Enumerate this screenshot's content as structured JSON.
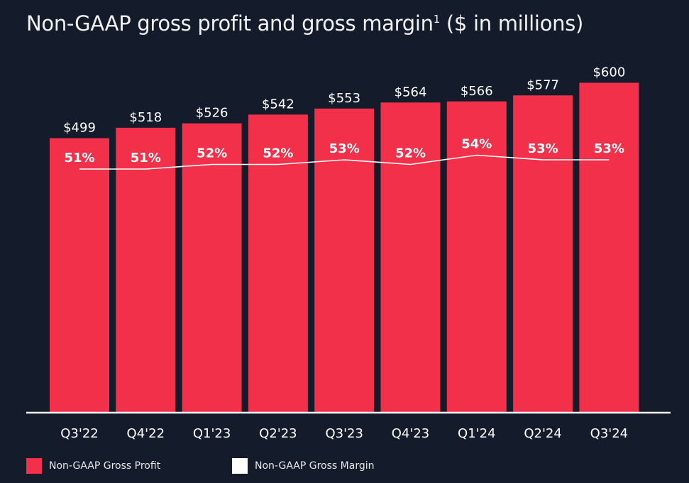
{
  "title": "Non-GAAP gross profit and gross margin",
  "title_superscript": "1",
  "title_units": "($ in millions)",
  "colors": {
    "background": "#141b2b",
    "bar": "#f2304a",
    "line": "#ffffff",
    "text": "#ffffff"
  },
  "chart_data": {
    "type": "bar",
    "title": "Non-GAAP gross profit and gross margin¹ ($ in millions)",
    "categories": [
      "Q3'22",
      "Q4'22",
      "Q1'23",
      "Q2'23",
      "Q3'23",
      "Q4'23",
      "Q1'24",
      "Q2'24",
      "Q3'24"
    ],
    "series": [
      {
        "name": "Non-GAAP Gross Profit",
        "type": "bar",
        "values": [
          499,
          518,
          526,
          542,
          553,
          564,
          566,
          577,
          600
        ],
        "labels": [
          "$499",
          "$518",
          "$526",
          "$542",
          "$553",
          "$564",
          "$566",
          "$577",
          "$600"
        ]
      },
      {
        "name": "Non-GAAP Gross Margin",
        "type": "line",
        "values": [
          51,
          51,
          52,
          52,
          53,
          52,
          54,
          53,
          53
        ],
        "labels": [
          "51%",
          "51%",
          "52%",
          "52%",
          "53%",
          "52%",
          "54%",
          "53%",
          "53%"
        ]
      }
    ],
    "ylim": [
      0,
      650
    ],
    "grid": false,
    "legend_position": "bottom-left"
  }
}
